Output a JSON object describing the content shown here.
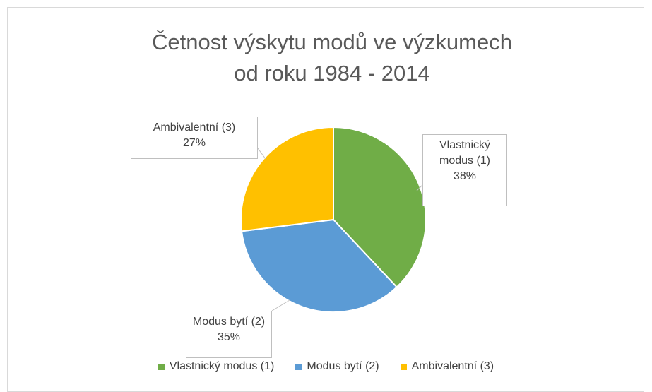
{
  "chart_data": {
    "type": "pie",
    "title": "Četnost výskytu modů ve výzkumech od roku 1984 - 2014",
    "categories": [
      "Vlastnický modus (1)",
      "Modus bytí (2)",
      "Ambivalentní (3)"
    ],
    "values": [
      38,
      35,
      27
    ],
    "value_labels": [
      "38%",
      "35%",
      "27%"
    ],
    "colors": [
      "#70ad47",
      "#5b9bd5",
      "#ffc000"
    ],
    "legend": "bottom"
  }
}
